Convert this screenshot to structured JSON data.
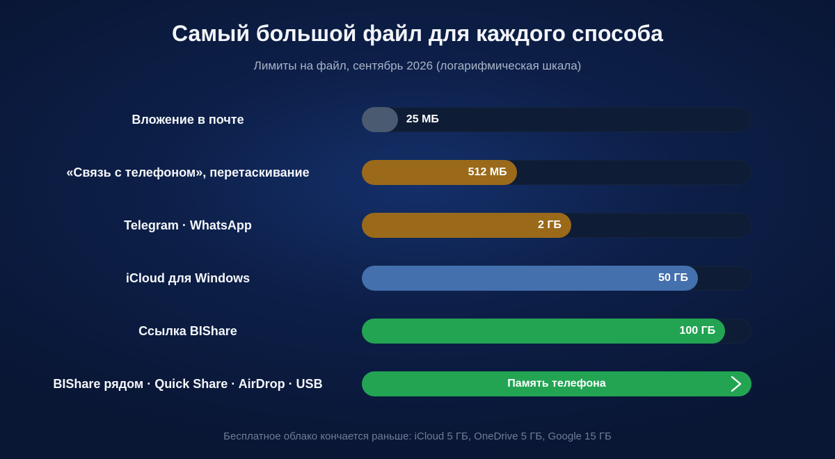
{
  "chart_data": {
    "type": "bar",
    "orientation": "horizontal",
    "title": "Самый большой файл для каждого способа",
    "subtitle": "Лимиты на файл, сентябрь 2026 (логарифмическая шкала)",
    "scale": "log",
    "value_unit": "MB",
    "xlim": [
      10,
      200000
    ],
    "categories": [
      "Вложение в почте",
      "«Связь с телефоном», перетаскивание",
      "Telegram · WhatsApp",
      "iCloud для Windows",
      "Ссылка BIShare",
      "BIShare рядом · Quick Share · AirDrop · USB"
    ],
    "values": [
      25,
      512,
      2048,
      51200,
      102400,
      null
    ],
    "data_labels": [
      "25 МБ",
      "512 МБ",
      "2 ГБ",
      "50 ГБ",
      "100 ГБ",
      "Память телефона"
    ],
    "colors": [
      "#4a5a70",
      "#9a6a1a",
      "#9a6a1a",
      "#4470ad",
      "#22a453",
      "#22a453"
    ],
    "unbounded": [
      false,
      false,
      false,
      false,
      false,
      true
    ],
    "footnote": "Бесплатное облако кончается раньше: iCloud 5 ГБ, OneDrive 5 ГБ, Google 15 ГБ"
  }
}
